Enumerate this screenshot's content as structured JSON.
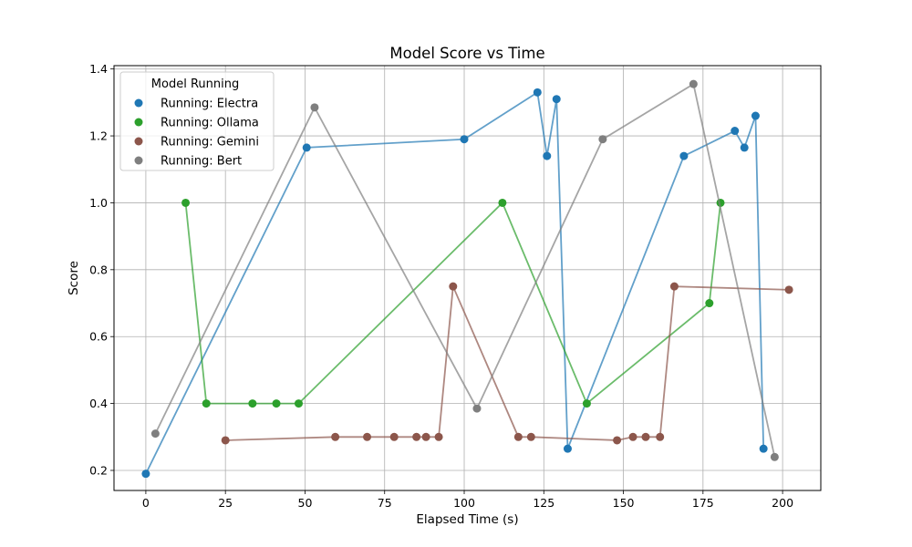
{
  "chart_data": {
    "type": "scatter",
    "title": "Model Score vs Time",
    "xlabel": "Elapsed Time (s)",
    "ylabel": "Score",
    "xlim": [
      -10,
      212
    ],
    "ylim": [
      0.14,
      1.41
    ],
    "xticks": [
      0,
      25,
      50,
      75,
      100,
      125,
      150,
      175,
      200
    ],
    "yticks": [
      0.2,
      0.4,
      0.6,
      0.8,
      1.0,
      1.2,
      1.4
    ],
    "xtick_labels": [
      "0",
      "25",
      "50",
      "75",
      "100",
      "125",
      "150",
      "175",
      "200"
    ],
    "ytick_labels": [
      "0.2",
      "0.4",
      "0.6",
      "0.8",
      "1.0",
      "1.2",
      "1.4"
    ],
    "grid": true,
    "legend": {
      "title": "Model Running",
      "placement": "top-left"
    },
    "series": [
      {
        "name": "Running: Electra",
        "color": "#1f77b4",
        "points": [
          [
            0,
            0.19
          ],
          [
            50.5,
            1.165
          ],
          [
            100,
            1.19
          ],
          [
            123,
            1.33
          ],
          [
            126,
            1.14
          ],
          [
            129,
            1.31
          ],
          [
            132.5,
            0.265
          ],
          [
            169,
            1.14
          ],
          [
            185,
            1.215
          ],
          [
            188,
            1.165
          ],
          [
            191.5,
            1.26
          ],
          [
            194,
            0.265
          ]
        ]
      },
      {
        "name": "Running: Ollama",
        "color": "#2ca02c",
        "points": [
          [
            12.5,
            1.0
          ],
          [
            19,
            0.4
          ],
          [
            33.5,
            0.4
          ],
          [
            41,
            0.4
          ],
          [
            48,
            0.4
          ],
          [
            112,
            1.0
          ],
          [
            138.5,
            0.4
          ],
          [
            177,
            0.7
          ],
          [
            180.5,
            1.0
          ]
        ]
      },
      {
        "name": "Running: Gemini",
        "color": "#8c564b",
        "points": [
          [
            25,
            0.29
          ],
          [
            59.5,
            0.3
          ],
          [
            69.5,
            0.3
          ],
          [
            78,
            0.3
          ],
          [
            85,
            0.3
          ],
          [
            88,
            0.3
          ],
          [
            92,
            0.3
          ],
          [
            96.5,
            0.75
          ],
          [
            117,
            0.3
          ],
          [
            121,
            0.3
          ],
          [
            148,
            0.29
          ],
          [
            153,
            0.3
          ],
          [
            157,
            0.3
          ],
          [
            161.5,
            0.3
          ],
          [
            166,
            0.75
          ],
          [
            202,
            0.74
          ]
        ]
      },
      {
        "name": "Running: Bert",
        "color": "#7f7f7f",
        "points": [
          [
            3,
            0.31
          ],
          [
            53,
            1.285
          ],
          [
            104,
            0.385
          ],
          [
            143.5,
            1.19
          ],
          [
            172,
            1.355
          ],
          [
            197.5,
            0.24
          ]
        ]
      }
    ]
  }
}
